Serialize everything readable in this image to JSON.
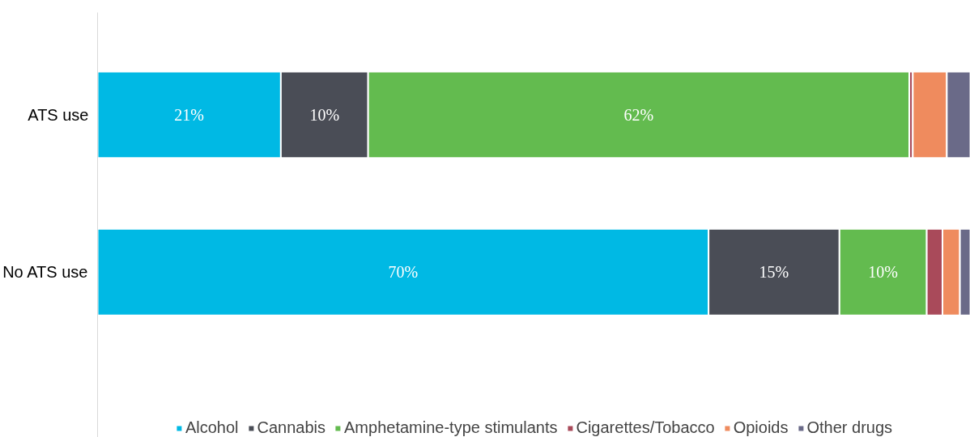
{
  "chart_data": {
    "type": "bar",
    "orientation": "horizontal",
    "stacked": true,
    "categories": [
      "ATS use",
      "No ATS use"
    ],
    "series": [
      {
        "name": "Alcohol",
        "color": "#00b9e4",
        "values": [
          21,
          70
        ],
        "value_labels": [
          "21%",
          "70%"
        ]
      },
      {
        "name": "Cannabis",
        "color": "#4a4d56",
        "values": [
          10,
          15
        ],
        "value_labels": [
          "10%",
          "15%"
        ]
      },
      {
        "name": "Amphetamine-type stimulants",
        "color": "#63bb4f",
        "values": [
          62,
          10
        ],
        "value_labels": [
          "62%",
          "10%"
        ]
      },
      {
        "name": "Cigarettes/Tobacco",
        "color": "#a94a5a",
        "values": [
          0.4,
          1.8
        ],
        "value_labels": [
          null,
          null
        ]
      },
      {
        "name": "Opioids",
        "color": "#ef8b5e",
        "values": [
          3.9,
          2
        ],
        "value_labels": [
          null,
          null
        ]
      },
      {
        "name": "Other drugs",
        "color": "#6a6a88",
        "values": [
          2.7,
          1.2
        ],
        "value_labels": [
          null,
          null
        ]
      }
    ],
    "xlim": [
      0,
      100
    ],
    "tick_labels": "y",
    "grid": false,
    "legend": "bottom"
  }
}
